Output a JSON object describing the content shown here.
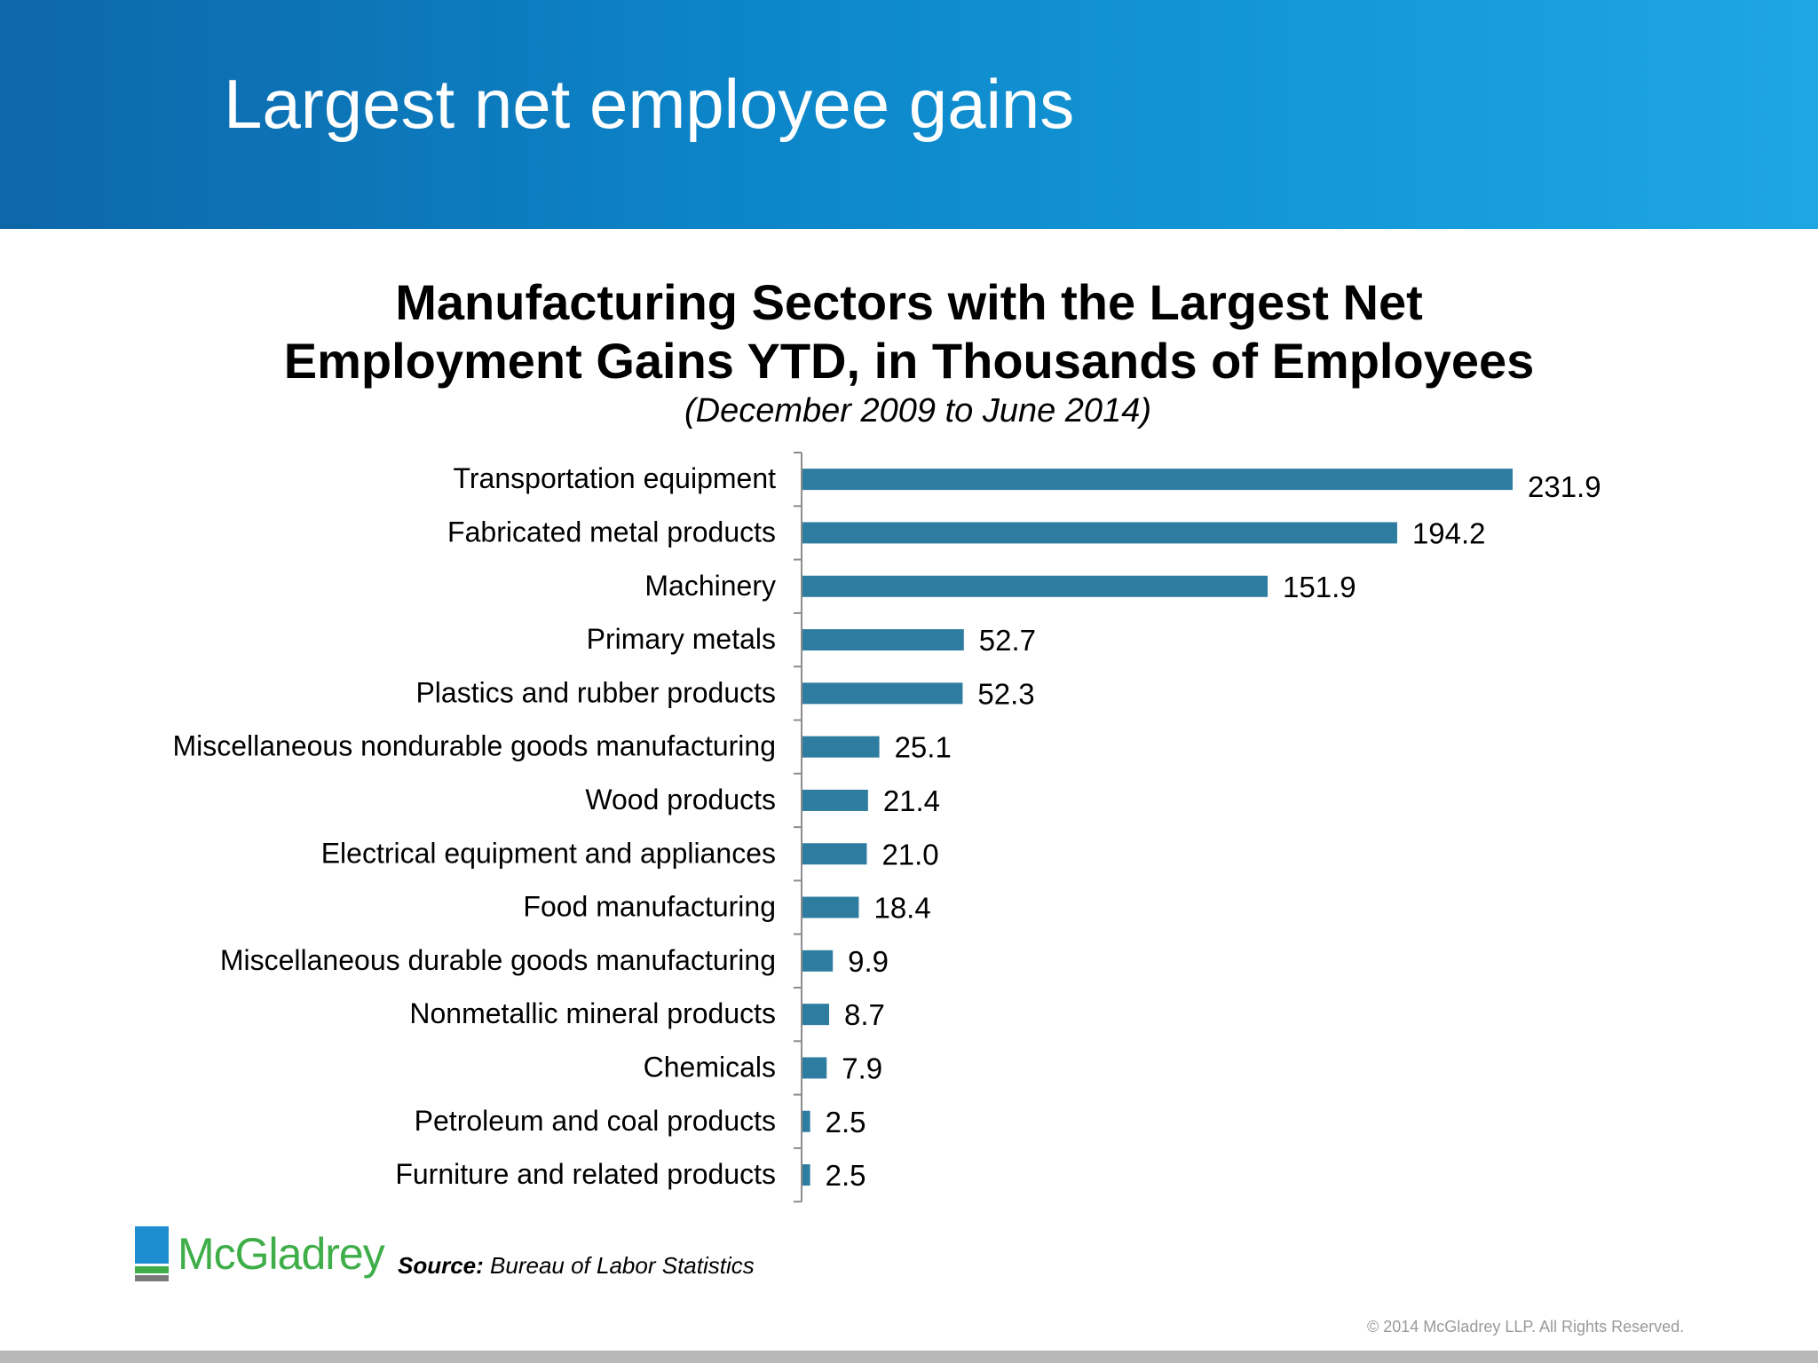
{
  "slide": {
    "title": "Largest net employee gains"
  },
  "chart_data": {
    "type": "bar",
    "orientation": "horizontal",
    "title_lines": [
      "Manufacturing Sectors with the Largest Net",
      "Employment Gains YTD, in Thousands of Employees"
    ],
    "subtitle": "(December 2009 to June 2014)",
    "categories": [
      "Transportation equipment",
      "Fabricated metal products",
      "Machinery",
      "Primary metals",
      "Plastics and rubber products",
      "Miscellaneous nondurable goods manufacturing",
      "Wood products",
      "Electrical equipment and appliances",
      "Food manufacturing",
      "Miscellaneous durable goods manufacturing",
      "Nonmetallic mineral products",
      "Chemicals",
      "Petroleum and coal products",
      "Furniture and related products"
    ],
    "values": [
      231.9,
      194.2,
      151.9,
      52.7,
      52.3,
      25.1,
      21.4,
      21.0,
      18.4,
      9.9,
      8.7,
      7.9,
      2.5,
      2.5
    ],
    "value_labels": [
      "231.9",
      "194.2",
      "151.9",
      "52.7",
      "52.3",
      "25.1",
      "21.4",
      "21.0",
      "18.4",
      "9.9",
      "8.7",
      "7.9",
      "2.5",
      "2.5"
    ],
    "xlim": [
      0,
      240
    ],
    "grid": false,
    "legend": "none",
    "bar_color": "#2e7ca0"
  },
  "logo": {
    "text": "McGladrey"
  },
  "source": {
    "label": "Source:",
    "text": " Bureau of Labor Statistics"
  },
  "footer": {
    "copyright": "© 2014 McGladrey LLP. All Rights Reserved."
  }
}
